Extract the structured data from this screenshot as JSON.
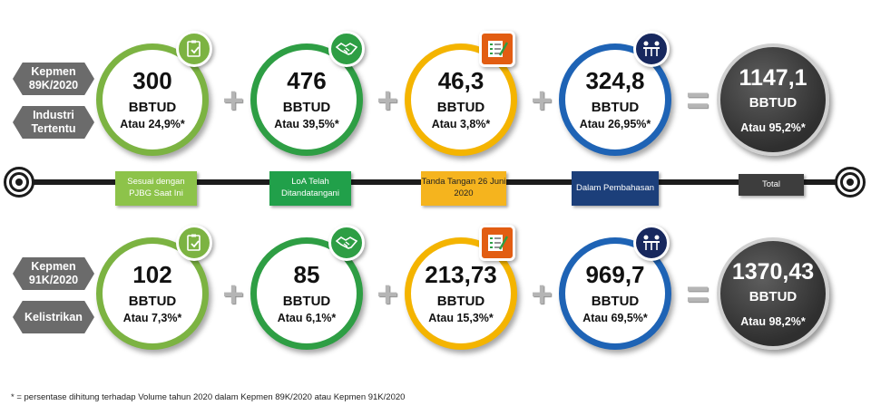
{
  "row1": {
    "tags": [
      "Kepmen 89K/2020",
      "Industri Tertentu"
    ],
    "circles": [
      {
        "value": "300",
        "unit": "BBTUD",
        "pct": "Atau 24,9%*",
        "color": "#7cb342",
        "icon": "checklist-clipboard-icon"
      },
      {
        "value": "476",
        "unit": "BBTUD",
        "pct": "Atau 39,5%*",
        "color": "#2e9e44",
        "icon": "handshake-icon"
      },
      {
        "value": "46,3",
        "unit": "BBTUD",
        "pct": "Atau 3,8%*",
        "color": "#f4b400",
        "icon": "checklist-pen-icon"
      },
      {
        "value": "324,8",
        "unit": "BBTUD",
        "pct": "Atau 26,95%*",
        "color": "#1e63b5",
        "icon": "meeting-icon"
      }
    ],
    "total": {
      "value": "1147,1",
      "unit": "BBTUD",
      "pct": "Atau 95,2%*"
    }
  },
  "row2": {
    "tags": [
      "Kepmen 91K/2020",
      "Kelistrikan"
    ],
    "circles": [
      {
        "value": "102",
        "unit": "BBTUD",
        "pct": "Atau 7,3%*",
        "color": "#7cb342",
        "icon": "checklist-clipboard-icon"
      },
      {
        "value": "85",
        "unit": "BBTUD",
        "pct": "Atau 6,1%*",
        "color": "#2e9e44",
        "icon": "handshake-icon"
      },
      {
        "value": "213,73",
        "unit": "BBTUD",
        "pct": "Atau 15,3%*",
        "color": "#f4b400",
        "icon": "checklist-pen-icon"
      },
      {
        "value": "969,7",
        "unit": "BBTUD",
        "pct": "Atau 69,5%*",
        "color": "#1e63b5",
        "icon": "meeting-icon"
      }
    ],
    "total": {
      "value": "1370,43",
      "unit": "BBTUD",
      "pct": "Atau 98,2%*"
    }
  },
  "timeline": {
    "labels": [
      {
        "text": "Sesuai dengan PJBG Saat Ini",
        "color": "#8dc34a"
      },
      {
        "text": "LoA Telah Ditandatangani",
        "color": "#21a04a"
      },
      {
        "text": "Tanda Tangan 26 Juni 2020",
        "color": "#f5b41e"
      },
      {
        "text": "Dalam Pembahasan",
        "color": "#1c3f7a"
      },
      {
        "text": "Total",
        "color": "#3d3d3d"
      }
    ]
  },
  "badge_colors": {
    "clipboard": "#7cb342",
    "handshake": "#2e9e44",
    "pen": "#e25d12",
    "meeting": "#17285e"
  },
  "footnote": "* = persentase dihitung terhadap Volume tahun 2020 dalam Kepmen 89K/2020 atau Kepmen 91K/2020"
}
